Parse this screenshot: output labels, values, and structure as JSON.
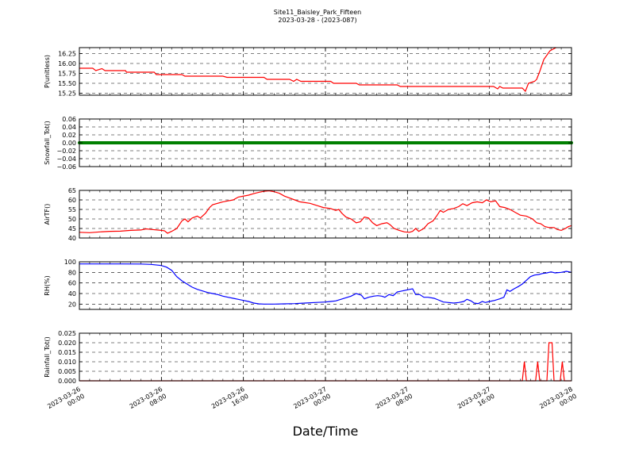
{
  "title": "Site11_Baisley_Park_Fifteen",
  "subtitle": "2023-03-28 - (2023-087)",
  "xlabel": "Date/Time",
  "chart_data": {
    "type": "line",
    "x_tick_labels": [
      [
        "2023-03-26",
        "00:00"
      ],
      [
        "2023-03-26",
        "08:00"
      ],
      [
        "2023-03-26",
        "16:00"
      ],
      [
        "2023-03-27",
        "00:00"
      ],
      [
        "2023-03-27",
        "08:00"
      ],
      [
        "2023-03-27",
        "16:00"
      ],
      [
        "2023-03-28",
        "00:00"
      ]
    ],
    "x_range_hours": [
      0,
      48
    ],
    "grid": true,
    "panels": [
      {
        "id": "pressure",
        "ylabel": "P(unitless)",
        "ylim": [
          15.2,
          16.4
        ],
        "yticks": [
          "15.25",
          "15.50",
          "15.75",
          "16.00",
          "16.25"
        ],
        "ytick_values": [
          15.25,
          15.5,
          15.75,
          16.0,
          16.25
        ],
        "color": "#ff0000",
        "style": "line",
        "series": [
          [
            0,
            15.88
          ],
          [
            1.3,
            15.88
          ],
          [
            1.6,
            15.82
          ],
          [
            2.2,
            15.87
          ],
          [
            2.5,
            15.82
          ],
          [
            4.5,
            15.82
          ],
          [
            4.6,
            15.78
          ],
          [
            7.3,
            15.78
          ],
          [
            7.5,
            15.72
          ],
          [
            10,
            15.72
          ],
          [
            10.3,
            15.68
          ],
          [
            14,
            15.68
          ],
          [
            14.4,
            15.65
          ],
          [
            18,
            15.65
          ],
          [
            18.3,
            15.6
          ],
          [
            20.5,
            15.6
          ],
          [
            20.9,
            15.55
          ],
          [
            21.2,
            15.6
          ],
          [
            21.6,
            15.55
          ],
          [
            24.5,
            15.55
          ],
          [
            24.8,
            15.5
          ],
          [
            27,
            15.5
          ],
          [
            27.3,
            15.46
          ],
          [
            31,
            15.46
          ],
          [
            31.3,
            15.42
          ],
          [
            40.4,
            15.42
          ],
          [
            40.8,
            15.36
          ],
          [
            41,
            15.42
          ],
          [
            41.3,
            15.38
          ],
          [
            43.2,
            15.38
          ],
          [
            43.5,
            15.3
          ],
          [
            43.8,
            15.5
          ],
          [
            44.4,
            15.55
          ],
          [
            44.6,
            15.6
          ],
          [
            44.9,
            15.8
          ],
          [
            45.3,
            16.1
          ],
          [
            45.9,
            16.32
          ],
          [
            46.5,
            16.4
          ]
        ]
      },
      {
        "id": "snowfall",
        "ylabel": "Snowfall_Tot()",
        "ylim": [
          -0.06,
          0.06
        ],
        "yticks": [
          "−0.06",
          "−0.04",
          "−0.02",
          "0.00",
          "0.02",
          "0.04",
          "0.06"
        ],
        "ytick_values": [
          -0.06,
          -0.04,
          -0.02,
          0.0,
          0.02,
          0.04,
          0.06
        ],
        "color": "#008000",
        "style": "markers",
        "series": "all 0.00 every 15 min from 0 to 48 h"
      },
      {
        "id": "airtemp",
        "ylabel": "AirTF()",
        "ylim": [
          40,
          65
        ],
        "yticks": [
          "40",
          "45",
          "50",
          "55",
          "60",
          "65"
        ],
        "ytick_values": [
          40,
          45,
          50,
          55,
          60,
          65
        ],
        "color": "#ff0000",
        "style": "line",
        "series": [
          [
            0,
            43
          ],
          [
            1,
            42.8
          ],
          [
            2,
            43.2
          ],
          [
            3,
            43.5
          ],
          [
            4,
            43.6
          ],
          [
            5,
            44
          ],
          [
            6,
            44.2
          ],
          [
            6.5,
            44.8
          ],
          [
            7,
            44.5
          ],
          [
            8,
            44
          ],
          [
            8.3,
            43.8
          ],
          [
            8.6,
            42.5
          ],
          [
            9,
            43.5
          ],
          [
            9.5,
            45
          ],
          [
            10,
            49
          ],
          [
            10.3,
            50
          ],
          [
            10.6,
            48.5
          ],
          [
            11,
            50.5
          ],
          [
            11.5,
            51.5
          ],
          [
            11.8,
            50.5
          ],
          [
            12.3,
            53
          ],
          [
            12.7,
            56
          ],
          [
            13,
            57.5
          ],
          [
            14,
            59
          ],
          [
            14.5,
            59.5
          ],
          [
            15,
            60
          ],
          [
            15.5,
            61.5
          ],
          [
            16.5,
            62.5
          ],
          [
            17,
            63.3
          ],
          [
            17.5,
            64
          ],
          [
            18,
            64.5
          ],
          [
            18.5,
            64.8
          ],
          [
            19,
            64.3
          ],
          [
            19.5,
            63.5
          ],
          [
            20,
            62
          ],
          [
            20.5,
            61
          ],
          [
            21,
            60
          ],
          [
            21.5,
            59
          ],
          [
            22.5,
            58.2
          ],
          [
            23.2,
            57
          ],
          [
            23.8,
            56
          ],
          [
            24.5,
            55.5
          ],
          [
            25,
            54.5
          ],
          [
            25.3,
            55
          ],
          [
            25.6,
            53
          ],
          [
            26,
            51
          ],
          [
            26.5,
            50
          ],
          [
            27,
            48
          ],
          [
            27.4,
            48.5
          ],
          [
            27.8,
            51
          ],
          [
            28.2,
            50.5
          ],
          [
            28.6,
            48
          ],
          [
            29,
            46.5
          ],
          [
            29.5,
            47.5
          ],
          [
            30,
            48
          ],
          [
            30.3,
            47
          ],
          [
            30.7,
            45
          ],
          [
            31.2,
            44
          ],
          [
            31.7,
            43.2
          ],
          [
            32.2,
            43
          ],
          [
            32.5,
            43.5
          ],
          [
            32.8,
            45
          ],
          [
            33.1,
            43.5
          ],
          [
            33.6,
            45
          ],
          [
            34,
            47.5
          ],
          [
            34.5,
            49
          ],
          [
            34.9,
            52
          ],
          [
            35.2,
            54.5
          ],
          [
            35.5,
            53.5
          ],
          [
            36,
            55
          ],
          [
            36.5,
            55.5
          ],
          [
            37,
            56.5
          ],
          [
            37.4,
            58
          ],
          [
            37.8,
            57
          ],
          [
            38.3,
            58.5
          ],
          [
            38.8,
            59
          ],
          [
            39.3,
            58.5
          ],
          [
            39.7,
            60
          ],
          [
            40.1,
            59
          ],
          [
            40.6,
            59.5
          ],
          [
            41,
            56.5
          ],
          [
            41.5,
            56
          ],
          [
            42,
            55
          ],
          [
            42.5,
            53.5
          ],
          [
            43,
            52
          ],
          [
            43.6,
            51.5
          ],
          [
            44.2,
            50
          ],
          [
            44.6,
            48
          ],
          [
            45,
            47.5
          ],
          [
            45.4,
            46
          ],
          [
            45.8,
            45.5
          ],
          [
            46.3,
            45.5
          ],
          [
            46.6,
            44.5
          ],
          [
            47,
            44
          ],
          [
            47.4,
            45
          ],
          [
            47.7,
            46
          ],
          [
            48,
            46.5
          ]
        ]
      },
      {
        "id": "rh",
        "ylabel": "RH(%)",
        "ylim": [
          10,
          100
        ],
        "yticks": [
          "20",
          "40",
          "60",
          "80",
          "100"
        ],
        "ytick_values": [
          20,
          40,
          60,
          80,
          100
        ],
        "color": "#0000ff",
        "style": "line",
        "series": [
          [
            0,
            96
          ],
          [
            2,
            96
          ],
          [
            4,
            96
          ],
          [
            6,
            95.8
          ],
          [
            7,
            95
          ],
          [
            8,
            93
          ],
          [
            8.5,
            90
          ],
          [
            9,
            84
          ],
          [
            9.5,
            72
          ],
          [
            10,
            64
          ],
          [
            10.5,
            58
          ],
          [
            11,
            52
          ],
          [
            11.5,
            48
          ],
          [
            12,
            45
          ],
          [
            12.5,
            42
          ],
          [
            13,
            40
          ],
          [
            13.5,
            38
          ],
          [
            14,
            35
          ],
          [
            14.5,
            33
          ],
          [
            15,
            31
          ],
          [
            15.5,
            29
          ],
          [
            16,
            27
          ],
          [
            16.5,
            25
          ],
          [
            17,
            22
          ],
          [
            17.5,
            20.5
          ],
          [
            18,
            20
          ],
          [
            19,
            20
          ],
          [
            20,
            20.5
          ],
          [
            21,
            21
          ],
          [
            22,
            22
          ],
          [
            23,
            23
          ],
          [
            24,
            24
          ],
          [
            24.5,
            25
          ],
          [
            25,
            26
          ],
          [
            25.5,
            29
          ],
          [
            26,
            32
          ],
          [
            26.5,
            35
          ],
          [
            27,
            40
          ],
          [
            27.5,
            37
          ],
          [
            27.8,
            30
          ],
          [
            28.2,
            33
          ],
          [
            28.7,
            35
          ],
          [
            29.1,
            36
          ],
          [
            29.5,
            35
          ],
          [
            29.8,
            33
          ],
          [
            30.2,
            38
          ],
          [
            30.6,
            36
          ],
          [
            31,
            43
          ],
          [
            31.5,
            45
          ],
          [
            32,
            47
          ],
          [
            32.5,
            49
          ],
          [
            32.8,
            38
          ],
          [
            33.2,
            38
          ],
          [
            33.6,
            33
          ],
          [
            34,
            33
          ],
          [
            34.6,
            31
          ],
          [
            35,
            28
          ],
          [
            35.5,
            24
          ],
          [
            36,
            23
          ],
          [
            36.5,
            22
          ],
          [
            37,
            23
          ],
          [
            37.5,
            25
          ],
          [
            37.8,
            29
          ],
          [
            38.2,
            26
          ],
          [
            38.5,
            22
          ],
          [
            38.9,
            21
          ],
          [
            39.3,
            25
          ],
          [
            39.6,
            23
          ],
          [
            40,
            25
          ],
          [
            40.5,
            27
          ],
          [
            41,
            30
          ],
          [
            41.4,
            33
          ],
          [
            41.7,
            47
          ],
          [
            42,
            44
          ],
          [
            42.4,
            49
          ],
          [
            42.8,
            53
          ],
          [
            43.2,
            58
          ],
          [
            43.6,
            65
          ],
          [
            44,
            72
          ],
          [
            44.4,
            75
          ],
          [
            44.8,
            76
          ],
          [
            45.2,
            78
          ],
          [
            45.6,
            79
          ],
          [
            46,
            81
          ],
          [
            46.4,
            79
          ],
          [
            47,
            80
          ],
          [
            47.5,
            82
          ],
          [
            48,
            80
          ]
        ]
      },
      {
        "id": "rainfall",
        "ylabel": "Rainfall_Tot()",
        "ylim": [
          0,
          0.025
        ],
        "yticks": [
          "0.000",
          "0.005",
          "0.010",
          "0.015",
          "0.020",
          "0.025"
        ],
        "ytick_values": [
          0,
          0.005,
          0.01,
          0.015,
          0.02,
          0.025
        ],
        "color": "#ff0000",
        "style": "line",
        "series": [
          [
            0,
            0
          ],
          [
            43.2,
            0
          ],
          [
            43.4,
            0.01
          ],
          [
            43.6,
            0
          ],
          [
            44.5,
            0
          ],
          [
            44.7,
            0.01
          ],
          [
            44.9,
            0
          ],
          [
            45.6,
            0
          ],
          [
            45.8,
            0.02
          ],
          [
            46.1,
            0.02
          ],
          [
            46.3,
            0
          ],
          [
            46.9,
            0
          ],
          [
            47.1,
            0.01
          ],
          [
            47.3,
            0
          ],
          [
            48,
            0
          ]
        ]
      }
    ]
  }
}
